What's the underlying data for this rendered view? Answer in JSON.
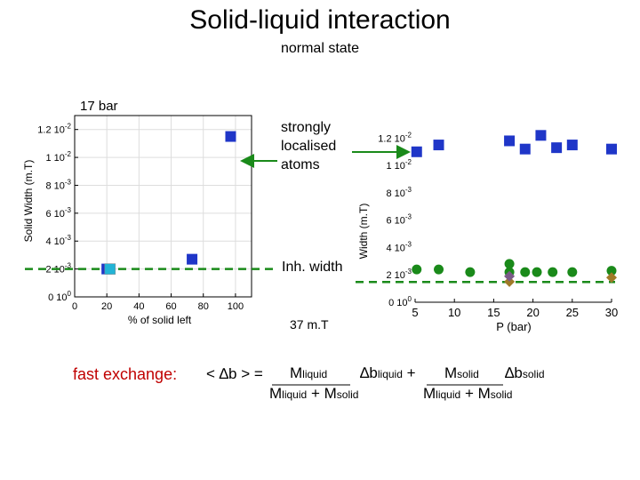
{
  "header": {
    "title": "Solid-liquid interaction",
    "subtitle": "normal state",
    "pressure_label": "17 bar",
    "field_label": "37 m.T"
  },
  "annotations": {
    "localised_line1": "strongly",
    "localised_line2": "localised",
    "localised_line3": "atoms",
    "inh_width": "Inh. width"
  },
  "formula": {
    "lead": "fast exchange:",
    "lhs": "< ∆b > =",
    "m": "M",
    "liquid": "liquid",
    "solid": "solid",
    "delta_b": "∆b",
    "plus": "+"
  },
  "chart_data": [
    {
      "type": "scatter",
      "title": "",
      "xlabel": "% of solid left",
      "ylabel": "Solid Width (m.T)",
      "xlim": [
        0,
        110
      ],
      "ylim": [
        0,
        0.013
      ],
      "x_ticks": [
        0,
        20,
        40,
        60,
        80,
        100
      ],
      "y_ticks": [
        {
          "v": 0,
          "label": "0 10",
          "exp": "0"
        },
        {
          "v": 0.002,
          "label": "2 10",
          "exp": "-3"
        },
        {
          "v": 0.004,
          "label": "4 10",
          "exp": "-3"
        },
        {
          "v": 0.006,
          "label": "6 10",
          "exp": "-3"
        },
        {
          "v": 0.008,
          "label": "8 10",
          "exp": "-3"
        },
        {
          "v": 0.01,
          "label": "1 10",
          "exp": "-2"
        },
        {
          "v": 0.012,
          "label": "1.2 10",
          "exp": "-2"
        }
      ],
      "grid": true,
      "reference_line_y": 0.002,
      "series": [
        {
          "color": "#1f36c8",
          "points": [
            {
              "x": 20,
              "y": 0.002
            },
            {
              "x": 73,
              "y": 0.0027
            },
            {
              "x": 97,
              "y": 0.0115
            }
          ]
        }
      ],
      "highlight_point": {
        "x": 22,
        "y": 0.002,
        "color": "#22b4d6"
      }
    },
    {
      "type": "scatter",
      "title": "",
      "xlabel": "P (bar)",
      "ylabel": "Width (m.T)",
      "xlim": [
        5,
        30
      ],
      "ylim": [
        0,
        0.013
      ],
      "x_ticks": [
        5,
        10,
        15,
        20,
        25,
        30
      ],
      "y_ticks": [
        {
          "v": 0,
          "label": "0 10",
          "exp": "0"
        },
        {
          "v": 0.002,
          "label": "2 10",
          "exp": "-3"
        },
        {
          "v": 0.004,
          "label": "4 10",
          "exp": "-3"
        },
        {
          "v": 0.006,
          "label": "6 10",
          "exp": "-3"
        },
        {
          "v": 0.008,
          "label": "8 10",
          "exp": "-3"
        },
        {
          "v": 0.01,
          "label": "1 10",
          "exp": "-2"
        },
        {
          "v": 0.012,
          "label": "1.2 10",
          "exp": "-2"
        }
      ],
      "reference_line_y": 0.002,
      "series": [
        {
          "color": "#1f36c8",
          "shape": "square",
          "points": [
            {
              "x": 5.2,
              "y": 0.011
            },
            {
              "x": 8,
              "y": 0.0115
            },
            {
              "x": 17,
              "y": 0.0118
            },
            {
              "x": 19,
              "y": 0.0112
            },
            {
              "x": 21,
              "y": 0.0122
            },
            {
              "x": 23,
              "y": 0.0113
            },
            {
              "x": 25,
              "y": 0.0115
            },
            {
              "x": 30,
              "y": 0.0112
            }
          ]
        },
        {
          "color": "#1a8a1a",
          "shape": "circle",
          "points": [
            {
              "x": 5.2,
              "y": 0.0024
            },
            {
              "x": 8,
              "y": 0.0024
            },
            {
              "x": 12,
              "y": 0.0022
            },
            {
              "x": 17,
              "y": 0.0028
            },
            {
              "x": 17,
              "y": 0.0022
            },
            {
              "x": 19,
              "y": 0.0022
            },
            {
              "x": 20.5,
              "y": 0.0022
            },
            {
              "x": 22.5,
              "y": 0.0022
            },
            {
              "x": 25,
              "y": 0.0022
            },
            {
              "x": 30,
              "y": 0.0023
            }
          ]
        },
        {
          "color": "#a07a28",
          "shape": "diamond",
          "points": [
            {
              "x": 17,
              "y": 0.0015
            },
            {
              "x": 30,
              "y": 0.0018
            }
          ]
        },
        {
          "color": "#7a5a88",
          "shape": "diamond",
          "points": [
            {
              "x": 17,
              "y": 0.0019
            }
          ]
        }
      ]
    }
  ]
}
